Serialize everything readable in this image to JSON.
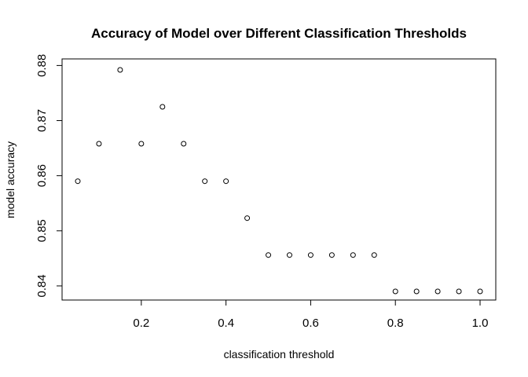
{
  "chart_data": {
    "type": "scatter",
    "title": "Accuracy of Model over Different Classification Thresholds",
    "xlabel": "classification threshold",
    "ylabel": "model accuracy",
    "xlim": [
      0.05,
      1.0
    ],
    "ylim": [
      0.839,
      0.8792
    ],
    "x_ticks": [
      0.2,
      0.4,
      0.6,
      0.8,
      1.0
    ],
    "x_tick_labels": [
      "0.2",
      "0.4",
      "0.6",
      "0.8",
      "1.0"
    ],
    "y_ticks": [
      0.84,
      0.85,
      0.86,
      0.87,
      0.88
    ],
    "y_tick_labels": [
      "0.84",
      "0.85",
      "0.86",
      "0.87",
      "0.88"
    ],
    "grid": false,
    "point_style": "open-circle",
    "x": [
      0.05,
      0.1,
      0.15,
      0.2,
      0.25,
      0.3,
      0.35,
      0.4,
      0.45,
      0.5,
      0.55,
      0.6,
      0.65,
      0.7,
      0.75,
      0.8,
      0.85,
      0.9,
      0.95,
      1.0
    ],
    "y": [
      0.859,
      0.8658,
      0.8792,
      0.8658,
      0.8725,
      0.8658,
      0.859,
      0.859,
      0.8523,
      0.8456,
      0.8456,
      0.8456,
      0.8456,
      0.8456,
      0.8456,
      0.839,
      0.839,
      0.839,
      0.839,
      0.839
    ]
  }
}
